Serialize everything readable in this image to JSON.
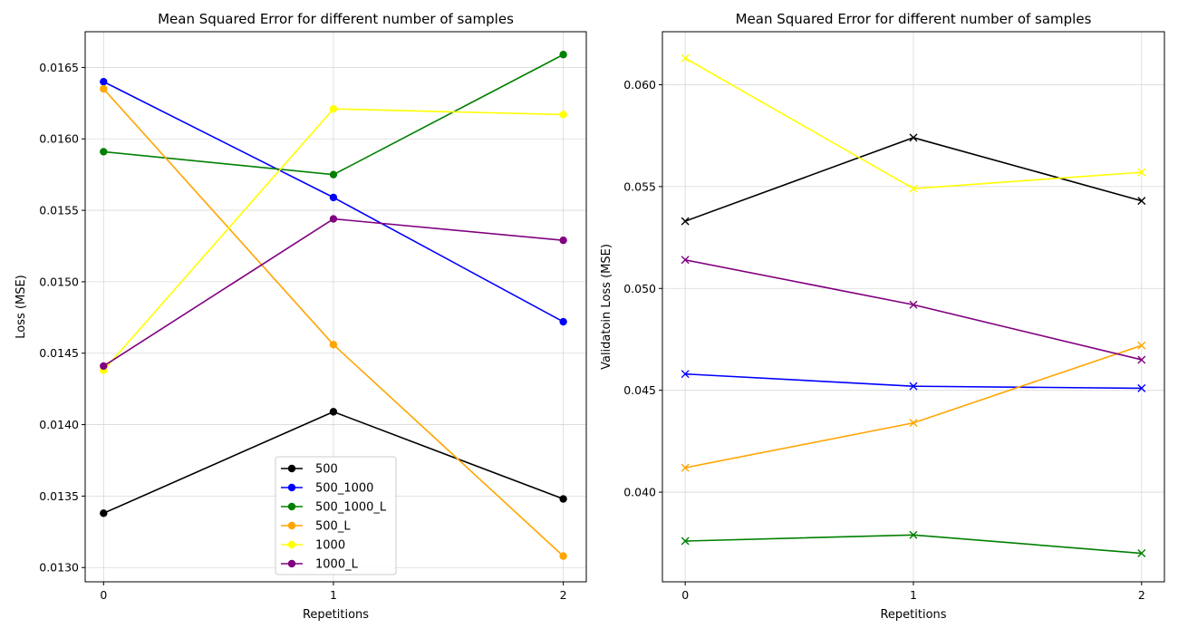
{
  "chart_data": [
    {
      "type": "line",
      "title": "Mean Squared Error for different number of samples",
      "xlabel": "Repetitions",
      "ylabel": "Loss (MSE)",
      "x": [
        0,
        1,
        2
      ],
      "xticks": [
        "0",
        "1",
        "2"
      ],
      "xlim": [
        -0.08,
        2.1
      ],
      "ylim": [
        0.0129,
        0.01675
      ],
      "yticks": [
        0.013,
        0.0135,
        0.014,
        0.0145,
        0.015,
        0.0155,
        0.016,
        0.0165
      ],
      "ytick_labels": [
        "0.0130",
        "0.0135",
        "0.0140",
        "0.0145",
        "0.0150",
        "0.0155",
        "0.0160",
        "0.0165"
      ],
      "grid": true,
      "marker": "circle",
      "legend": "lower-center",
      "series": [
        {
          "name": "500",
          "color": "#000000",
          "values": [
            0.01338,
            0.01409,
            0.01348
          ]
        },
        {
          "name": "500_1000",
          "color": "#0000ff",
          "values": [
            0.0164,
            0.01559,
            0.01472
          ]
        },
        {
          "name": "500_1000_L",
          "color": "#008000",
          "values": [
            0.01591,
            0.01575,
            0.01659
          ]
        },
        {
          "name": "500_L",
          "color": "#ffa500",
          "values": [
            0.01635,
            0.01456,
            0.01308
          ]
        },
        {
          "name": "1000",
          "color": "#ffff00",
          "values": [
            0.01438,
            0.01621,
            0.01617
          ]
        },
        {
          "name": "1000_L",
          "color": "#800080",
          "values": [
            0.01441,
            0.01544,
            0.01529
          ]
        }
      ]
    },
    {
      "type": "line",
      "title": "Mean Squared Error for different number of samples",
      "xlabel": "Repetitions",
      "ylabel": "Validatoin Loss (MSE)",
      "x": [
        0,
        1,
        2
      ],
      "xticks": [
        "0",
        "1",
        "2"
      ],
      "xlim": [
        -0.1,
        2.1
      ],
      "ylim": [
        0.0356,
        0.0626
      ],
      "yticks": [
        0.04,
        0.045,
        0.05,
        0.055,
        0.06
      ],
      "ytick_labels": [
        "0.040",
        "0.045",
        "0.050",
        "0.055",
        "0.060"
      ],
      "grid": true,
      "marker": "x",
      "legend": "none",
      "series": [
        {
          "name": "500",
          "color": "#000000",
          "values": [
            0.0533,
            0.0574,
            0.0543
          ]
        },
        {
          "name": "500_1000",
          "color": "#0000ff",
          "values": [
            0.0458,
            0.0452,
            0.0451
          ]
        },
        {
          "name": "500_1000_L",
          "color": "#008000",
          "values": [
            0.0376,
            0.0379,
            0.037
          ]
        },
        {
          "name": "500_L",
          "color": "#ffa500",
          "values": [
            0.0412,
            0.0434,
            0.0472
          ]
        },
        {
          "name": "1000",
          "color": "#ffff00",
          "values": [
            0.0613,
            0.0549,
            0.0557
          ]
        },
        {
          "name": "1000_L",
          "color": "#800080",
          "values": [
            0.0514,
            0.0492,
            0.0465
          ]
        }
      ]
    }
  ]
}
